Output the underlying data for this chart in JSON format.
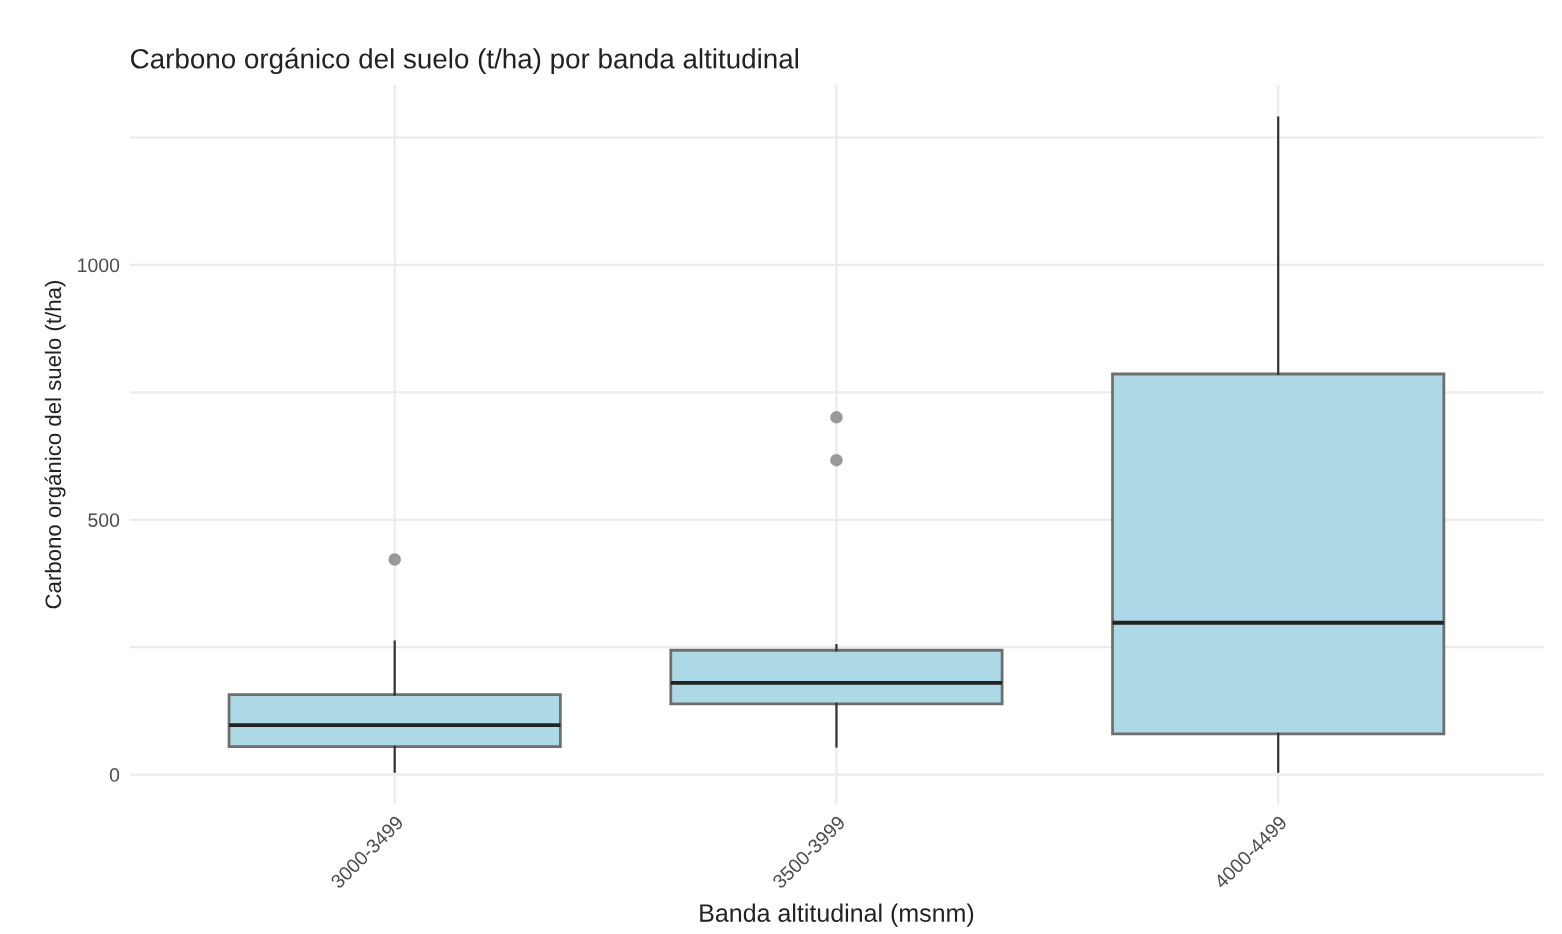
{
  "chart_data": {
    "type": "box",
    "title": "Carbono orgánico del suelo (t/ha) por banda altitudinal",
    "xlabel": "Banda altitudinal (msnm)",
    "ylabel": "Carbono orgánico del suelo (t/ha)",
    "categories": [
      "3000-3499",
      "3500-3999",
      "4000-4499"
    ],
    "series": [
      {
        "color": "#add8e6",
        "boxes": [
          {
            "low": 6,
            "q1": 55,
            "median": 97,
            "q3": 157,
            "high": 261,
            "outliers": [
              422
            ]
          },
          {
            "low": 55,
            "q1": 139,
            "median": 180,
            "q3": 244,
            "high": 254,
            "outliers": [
              617,
              701
            ]
          },
          {
            "low": 6,
            "q1": 80,
            "median": 298,
            "q3": 786,
            "high": 1289
          }
        ]
      }
    ],
    "ylim": [
      -58,
      1353
    ],
    "yticks": [
      0,
      {
        "value": 250,
        "label": null
      },
      500,
      {
        "value": 750,
        "label": null
      },
      1000,
      {
        "value": 1250,
        "label": null
      }
    ],
    "grid": true,
    "legend": false
  }
}
